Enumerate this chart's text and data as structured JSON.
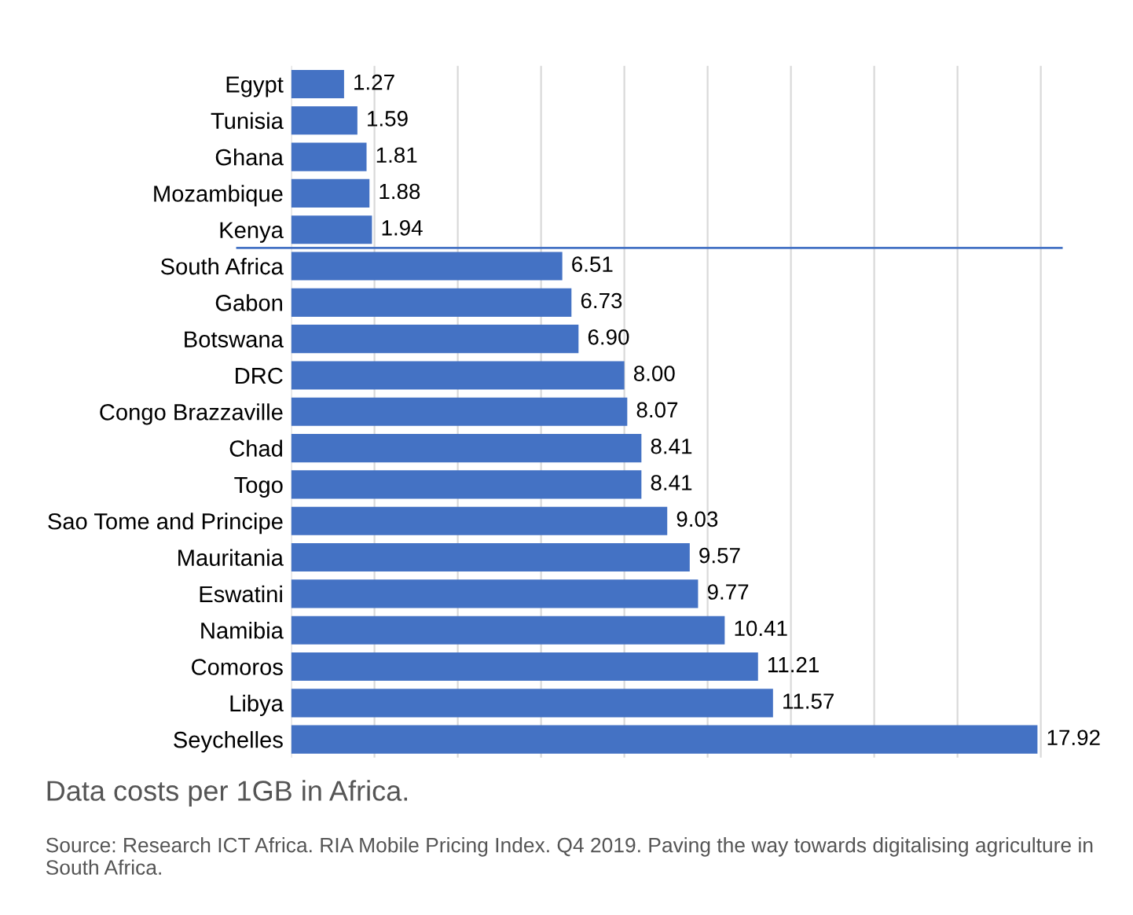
{
  "chart_data": {
    "type": "bar",
    "orientation": "horizontal",
    "title": "Data costs per 1GB in Africa.",
    "categories": [
      "Egypt",
      "Tunisia",
      "Ghana",
      "Mozambique",
      "Kenya",
      "South Africa",
      "Gabon",
      "Botswana",
      "DRC",
      "Congo Brazzaville",
      "Chad",
      "Togo",
      "Sao Tome and Principe",
      "Mauritania",
      "Eswatini",
      "Namibia",
      "Comoros",
      "Libya",
      "Seychelles"
    ],
    "values": [
      1.27,
      1.59,
      1.81,
      1.88,
      1.94,
      6.51,
      6.73,
      6.9,
      8.0,
      8.07,
      8.41,
      8.41,
      9.03,
      9.57,
      9.77,
      10.41,
      11.21,
      11.57,
      17.92
    ],
    "value_labels": [
      "1.27",
      "1.59",
      "1.81",
      "1.88",
      "1.94",
      "6.51",
      "6.73",
      "6.90",
      "8.00",
      "8.07",
      "8.41",
      "8.41",
      "9.03",
      "9.57",
      "9.77",
      "10.41",
      "11.21",
      "11.57",
      "17.92"
    ],
    "color": "#4472c4",
    "xlim": [
      0,
      18.5
    ],
    "xticks": [
      0,
      2,
      4,
      6,
      8,
      10,
      12,
      14,
      16,
      18
    ],
    "grid": "x",
    "tick_labels": "y",
    "ref_lines": [
      {
        "axis": "y",
        "value": "Kenya",
        "color": "#4472c4"
      }
    ],
    "annotations": [
      "Source: Research ICT Africa. RIA Mobile Pricing Index. Q4 2019. Paving the way towards digitalising agriculture in South Africa."
    ]
  }
}
